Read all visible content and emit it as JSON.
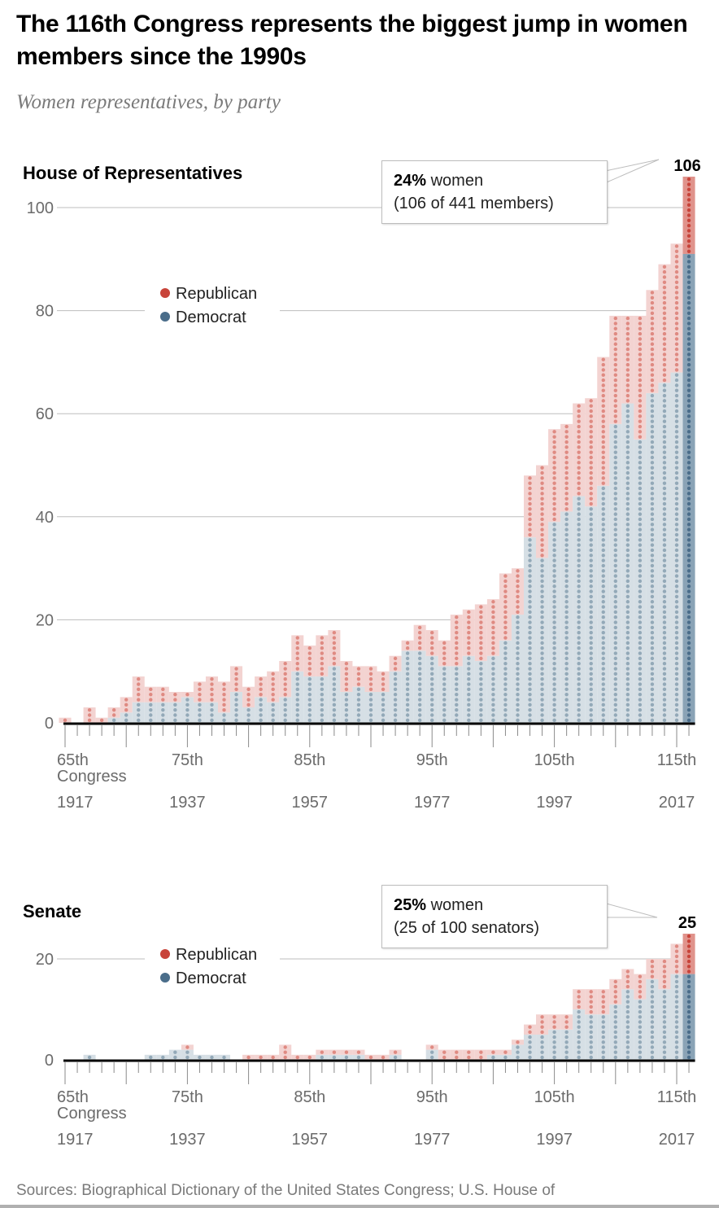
{
  "title": "The 116th Congress represents the biggest jump in women members since the 1990s",
  "subtitle": "Women representatives, by party",
  "colors": {
    "republican": "#c8443a",
    "democrat": "#4a6d8a",
    "republican_light_fill": "#f3d3d1",
    "democrat_light_fill": "#d6dfe5",
    "republican_light_dot": "#df8a82",
    "democrat_light_dot": "#93a9b8",
    "republican_highlight_fill": "#e0938c",
    "democrat_highlight_fill": "#8aa3b6",
    "gridline": "#bdbdbd",
    "axis": "#000000"
  },
  "legend": {
    "republican": "Republican",
    "democrat": "Democrat"
  },
  "source": "Sources: Biographical Dictionary of the United States Congress; U.S. House of",
  "chart_data": [
    {
      "type": "bar",
      "stacked": true,
      "title": "House of Representatives",
      "xlabel": "Congress",
      "ylabel": "",
      "ylim": [
        0,
        106
      ],
      "yticks": [
        0,
        20,
        40,
        60,
        80,
        100
      ],
      "grid": true,
      "legend_position": "top-left",
      "x_tick_labels": [
        {
          "congress": 65,
          "label": "65th",
          "sub": "Congress",
          "year": "1917"
        },
        {
          "congress": 75,
          "label": "75th",
          "sub": "",
          "year": "1937"
        },
        {
          "congress": 85,
          "label": "85th",
          "sub": "",
          "year": "1957"
        },
        {
          "congress": 95,
          "label": "95th",
          "sub": "",
          "year": "1977"
        },
        {
          "congress": 105,
          "label": "105th",
          "sub": "",
          "year": "1997"
        },
        {
          "congress": 115,
          "label": "115th",
          "sub": "",
          "year": "2017"
        }
      ],
      "categories": [
        65,
        66,
        67,
        68,
        69,
        70,
        71,
        72,
        73,
        74,
        75,
        76,
        77,
        78,
        79,
        80,
        81,
        82,
        83,
        84,
        85,
        86,
        87,
        88,
        89,
        90,
        91,
        92,
        93,
        94,
        95,
        96,
        97,
        98,
        99,
        100,
        101,
        102,
        103,
        104,
        105,
        106,
        107,
        108,
        109,
        110,
        111,
        112,
        113,
        114,
        115,
        116
      ],
      "series": [
        {
          "name": "Democrat",
          "values": [
            0,
            0,
            0,
            0,
            1,
            2,
            4,
            4,
            4,
            4,
            5,
            4,
            4,
            2,
            6,
            3,
            5,
            4,
            5,
            10,
            9,
            9,
            11,
            6,
            7,
            6,
            6,
            10,
            14,
            14,
            13,
            11,
            11,
            13,
            12,
            13,
            16,
            21,
            36,
            32,
            39,
            41,
            44,
            42,
            46,
            58,
            62,
            55,
            64,
            66,
            68,
            91
          ]
        },
        {
          "name": "Republican",
          "values": [
            1,
            0,
            3,
            1,
            2,
            3,
            5,
            3,
            3,
            2,
            1,
            4,
            5,
            6,
            5,
            4,
            4,
            6,
            7,
            7,
            6,
            8,
            7,
            6,
            4,
            5,
            4,
            3,
            2,
            5,
            5,
            5,
            10,
            9,
            11,
            11,
            13,
            9,
            12,
            18,
            18,
            17,
            18,
            21,
            25,
            21,
            17,
            24,
            20,
            23,
            25,
            15
          ]
        }
      ],
      "highlight": {
        "congress": 116,
        "total_label": "106",
        "annotation_bold": "24%",
        "annotation_line1": " women",
        "annotation_line2": "(106 of 441 members)"
      }
    },
    {
      "type": "bar",
      "stacked": true,
      "title": "Senate",
      "xlabel": "Congress",
      "ylabel": "",
      "ylim": [
        0,
        25
      ],
      "yticks": [
        0,
        20
      ],
      "grid": true,
      "legend_position": "top-left",
      "x_tick_labels": [
        {
          "congress": 65,
          "label": "65th",
          "sub": "Congress",
          "year": "1917"
        },
        {
          "congress": 75,
          "label": "75th",
          "sub": "",
          "year": "1937"
        },
        {
          "congress": 85,
          "label": "85th",
          "sub": "",
          "year": "1957"
        },
        {
          "congress": 95,
          "label": "95th",
          "sub": "",
          "year": "1977"
        },
        {
          "congress": 105,
          "label": "105th",
          "sub": "",
          "year": "1997"
        },
        {
          "congress": 115,
          "label": "115th",
          "sub": "",
          "year": "2017"
        }
      ],
      "categories": [
        65,
        66,
        67,
        68,
        69,
        70,
        71,
        72,
        73,
        74,
        75,
        76,
        77,
        78,
        79,
        80,
        81,
        82,
        83,
        84,
        85,
        86,
        87,
        88,
        89,
        90,
        91,
        92,
        93,
        94,
        95,
        96,
        97,
        98,
        99,
        100,
        101,
        102,
        103,
        104,
        105,
        106,
        107,
        108,
        109,
        110,
        111,
        112,
        113,
        114,
        115,
        116
      ],
      "series": [
        {
          "name": "Democrat",
          "values": [
            0,
            0,
            1,
            0,
            0,
            0,
            0,
            1,
            1,
            2,
            2,
            1,
            1,
            1,
            0,
            0,
            0,
            0,
            0,
            0,
            0,
            1,
            1,
            1,
            1,
            0,
            0,
            1,
            0,
            0,
            2,
            0,
            0,
            0,
            0,
            1,
            1,
            3,
            5,
            5,
            6,
            6,
            10,
            9,
            9,
            11,
            14,
            12,
            16,
            14,
            17,
            17
          ]
        },
        {
          "name": "Republican",
          "values": [
            0,
            0,
            0,
            0,
            0,
            0,
            0,
            0,
            0,
            0,
            1,
            0,
            0,
            0,
            0,
            1,
            1,
            1,
            3,
            1,
            1,
            1,
            1,
            1,
            1,
            1,
            1,
            1,
            0,
            0,
            1,
            2,
            2,
            2,
            2,
            1,
            1,
            1,
            2,
            4,
            3,
            3,
            4,
            5,
            5,
            5,
            4,
            5,
            4,
            6,
            6,
            8
          ]
        }
      ],
      "highlight": {
        "congress": 116,
        "total_label": "25",
        "annotation_bold": "25%",
        "annotation_line1": " women",
        "annotation_line2": "(25 of 100 senators)"
      }
    }
  ]
}
